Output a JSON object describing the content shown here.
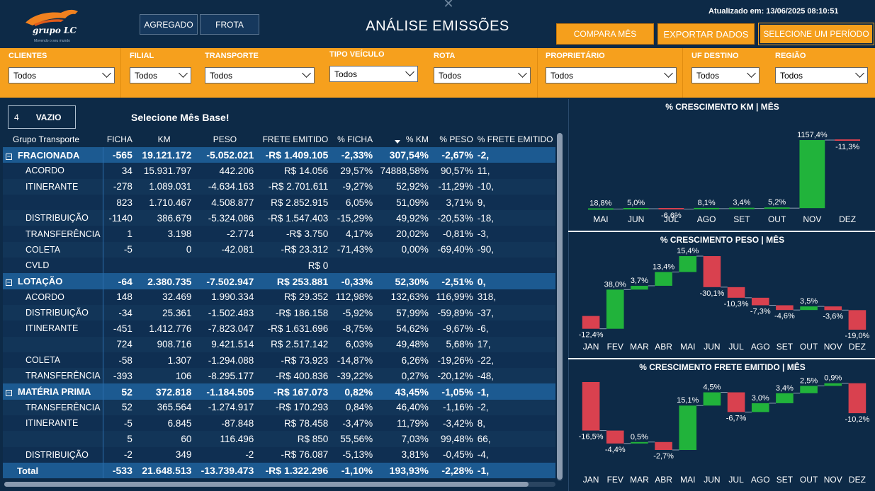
{
  "header": {
    "logo_text": "grupo LC",
    "logo_tagline": "Movendo o seu mundo",
    "btn_agregado": "AGREGADO",
    "btn_frota": "FROTA",
    "title": "ANÁLISE EMISSÕES",
    "close_glyph": "✕",
    "updated": "Atualizado em: 13/06/2025 08:10:51",
    "btn_compara": "COMPARA MÊS",
    "btn_exportar": "EXPORTAR DADOS",
    "btn_periodo": "SELECIONE UM PERÍODO"
  },
  "filters": [
    {
      "label": "CLIENTES",
      "value": "Todos"
    },
    {
      "label": "FILIAL",
      "value": "Todos"
    },
    {
      "label": "TRANSPORTE",
      "value": "Todos"
    },
    {
      "label": "TIPO VEÍCULO",
      "value": "Todos"
    },
    {
      "label": "ROTA",
      "value": "Todos"
    },
    {
      "label": "PROPRIETÁRIO",
      "value": "Todos"
    },
    {
      "label": "UF DESTINO",
      "value": "Todos"
    },
    {
      "label": "REGIÃO",
      "value": "Todos"
    }
  ],
  "selector": {
    "count": "4",
    "status": "VAZIO",
    "base_label": "Selecione Mês Base!"
  },
  "table": {
    "columns": [
      "Grupo Transporte",
      "FICHA",
      "KM",
      "PESO",
      "FRETE EMITIDO",
      "% FICHA",
      "% KM",
      "% PESO",
      "% FRETE EMITIDO"
    ],
    "rows": [
      {
        "type": "group",
        "cells": [
          "FRACIONADA",
          "-565",
          "19.121.172",
          "-5.052.021",
          "-R$ 1.409.105",
          "-2,33%",
          "307,54%",
          "-2,67%",
          "-2,"
        ]
      },
      {
        "type": "sub",
        "cells": [
          "ACORDO",
          "34",
          "15.931.797",
          "442.206",
          "R$ 14.056",
          "29,57%",
          "74888,58%",
          "90,57%",
          "11,"
        ]
      },
      {
        "type": "sub",
        "cells": [
          "ITINERANTE",
          "-278",
          "1.089.031",
          "-4.634.163",
          "-R$ 2.701.611",
          "-9,27%",
          "52,92%",
          "-11,29%",
          "-10,"
        ]
      },
      {
        "type": "sub",
        "cells": [
          "",
          "823",
          "1.710.467",
          "4.508.877",
          "R$ 2.852.915",
          "6,05%",
          "51,09%",
          "3,71%",
          "9,"
        ]
      },
      {
        "type": "sub",
        "cells": [
          "DISTRIBUIÇÃO",
          "-1140",
          "386.679",
          "-5.324.086",
          "-R$ 1.547.403",
          "-15,29%",
          "49,92%",
          "-20,53%",
          "-18,"
        ]
      },
      {
        "type": "sub",
        "cells": [
          "TRANSFERÊNCIA",
          "1",
          "3.198",
          "-2.774",
          "-R$ 3.750",
          "4,17%",
          "20,02%",
          "-0,81%",
          "-3,"
        ]
      },
      {
        "type": "sub",
        "cells": [
          "COLETA",
          "-5",
          "0",
          "-42.081",
          "-R$ 23.312",
          "-71,43%",
          "0,00%",
          "-69,40%",
          "-90,"
        ]
      },
      {
        "type": "sub",
        "cells": [
          "CVLD",
          "",
          "",
          "",
          "R$ 0",
          "",
          "",
          "",
          ""
        ]
      },
      {
        "type": "group",
        "cells": [
          "LOTAÇÃO",
          "-64",
          "2.380.735",
          "-7.502.947",
          "R$ 253.881",
          "-0,33%",
          "52,30%",
          "-2,51%",
          "0,"
        ]
      },
      {
        "type": "sub",
        "cells": [
          "ACORDO",
          "148",
          "32.469",
          "1.990.334",
          "R$ 29.352",
          "112,98%",
          "132,63%",
          "116,99%",
          "318,"
        ]
      },
      {
        "type": "sub",
        "cells": [
          "DISTRIBUIÇÃO",
          "-34",
          "25.361",
          "-1.502.483",
          "-R$ 186.158",
          "-5,92%",
          "57,99%",
          "-59,89%",
          "-37,"
        ]
      },
      {
        "type": "sub",
        "cells": [
          "ITINERANTE",
          "-451",
          "1.412.776",
          "-7.823.047",
          "-R$ 1.631.696",
          "-8,75%",
          "54,62%",
          "-9,67%",
          "-6,"
        ]
      },
      {
        "type": "sub",
        "cells": [
          "",
          "724",
          "908.716",
          "9.421.514",
          "R$ 2.517.142",
          "6,03%",
          "49,48%",
          "5,68%",
          "17,"
        ]
      },
      {
        "type": "sub",
        "cells": [
          "COLETA",
          "-58",
          "1.307",
          "-1.294.088",
          "-R$ 73.923",
          "-14,87%",
          "6,26%",
          "-19,26%",
          "-22,"
        ]
      },
      {
        "type": "sub",
        "cells": [
          "TRANSFERÊNCIA",
          "-393",
          "106",
          "-8.295.177",
          "-R$ 400.836",
          "-39,22%",
          "0,27%",
          "-20,12%",
          "-48,"
        ]
      },
      {
        "type": "group",
        "cells": [
          "MATÉRIA PRIMA",
          "52",
          "372.818",
          "-1.184.505",
          "-R$ 167.073",
          "0,82%",
          "43,45%",
          "-1,05%",
          "-1,"
        ]
      },
      {
        "type": "sub",
        "cells": [
          "TRANSFERÊNCIA",
          "52",
          "365.564",
          "-1.274.917",
          "-R$ 170.293",
          "0,84%",
          "46,40%",
          "-1,16%",
          "-2,"
        ]
      },
      {
        "type": "sub",
        "cells": [
          "ITINERANTE",
          "-5",
          "6.845",
          "-87.848",
          "R$ 78.458",
          "-3,47%",
          "11,79%",
          "-3,42%",
          "8,"
        ]
      },
      {
        "type": "sub",
        "cells": [
          "",
          "5",
          "60",
          "116.496",
          "R$ 850",
          "55,56%",
          "7,03%",
          "99,48%",
          "66,"
        ]
      },
      {
        "type": "sub",
        "cells": [
          "DISTRIBUIÇÃO",
          "-2",
          "349",
          "-2",
          "-R$ 76.087",
          "-5,13%",
          "3,81%",
          "-0,45%",
          "-4,"
        ]
      },
      {
        "type": "total",
        "cells": [
          "Total",
          "-533",
          "21.648.513",
          "-13.739.473",
          "-R$ 1.322.296",
          "-1,10%",
          "193,93%",
          "-2,28%",
          "-1,"
        ]
      }
    ]
  },
  "colors": {
    "positive": "#21b33b",
    "negative": "#d9414f",
    "total": "#6b7d90"
  },
  "chart_data": [
    {
      "type": "bar",
      "subtype": "waterfall",
      "title": "% CRESCIMENTO KM | MÊS",
      "categories": [
        "MAI",
        "JUN",
        "JUL",
        "AGO",
        "SET",
        "OUT",
        "NOV",
        "DEZ"
      ],
      "values": [
        18.8,
        5.0,
        -6.6,
        8.1,
        3.4,
        5.2,
        1157.4,
        -11.3
      ],
      "labels": [
        "18,8%",
        "5,0%",
        "-6,6%",
        "8,1%",
        "3,4%",
        "5,2%",
        "1157,4%",
        "-11,3%"
      ]
    },
    {
      "type": "bar",
      "subtype": "waterfall",
      "title": "% CRESCIMENTO PESO | MÊS",
      "categories": [
        "JAN",
        "FEV",
        "MAR",
        "ABR",
        "MAI",
        "JUN",
        "JUL",
        "AGO",
        "SET",
        "OUT",
        "NOV",
        "DEZ"
      ],
      "values": [
        -12.4,
        38.0,
        3.7,
        13.4,
        15.4,
        -30.1,
        -10.3,
        -7.3,
        -4.6,
        3.5,
        -3.6,
        -19.0
      ],
      "labels": [
        "-12,4%",
        "38,0%",
        "3,7%",
        "13,4%",
        "15,4%",
        "-30,1%",
        "-10,3%",
        "-7,3%",
        "-4,6%",
        "3,5%",
        "-3,6%",
        "-19,0%"
      ]
    },
    {
      "type": "bar",
      "subtype": "waterfall",
      "title": "% CRESCIMENTO FRETE EMITIDO | MÊS",
      "categories": [
        "JAN",
        "FEV",
        "MAR",
        "ABR",
        "MAI",
        "JUN",
        "JUL",
        "AGO",
        "SET",
        "OUT",
        "NOV",
        "DEZ"
      ],
      "values": [
        -16.5,
        -4.4,
        0.5,
        -2.7,
        15.1,
        4.5,
        -6.7,
        3.0,
        3.4,
        2.5,
        0.9,
        -10.2
      ],
      "labels": [
        "-16,5%",
        "-4,4%",
        "0,5%",
        "-2,7%",
        "15,1%",
        "4,5%",
        "-6,7%",
        "3,0%",
        "3,4%",
        "2,5%",
        "0,9%",
        "-10,2%"
      ]
    }
  ]
}
